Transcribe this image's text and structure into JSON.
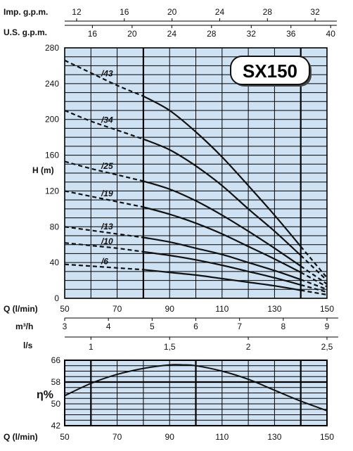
{
  "chart_data": [
    {
      "type": "line",
      "title": "SX150",
      "ylabel": "H (m)",
      "xlabel": "Q (l/min)",
      "xlim": [
        50,
        150
      ],
      "ylim": [
        0,
        280
      ],
      "x_ticks": [
        "50",
        "70",
        "90",
        "110",
        "130",
        "150"
      ],
      "y_ticks": [
        "0",
        "40",
        "80",
        "120",
        "160",
        "200",
        "240",
        "280"
      ],
      "top_axes": [
        {
          "label": "Imp. g.p.m.",
          "ticks": [
            "12",
            "16",
            "20",
            "24",
            "28",
            "32"
          ]
        },
        {
          "label": "U.S. g.p.m.",
          "ticks": [
            "16",
            "20",
            "24",
            "28",
            "32",
            "36",
            "40"
          ]
        }
      ],
      "bottom_axes": [
        {
          "label": "m³/h",
          "ticks": [
            "3",
            "4",
            "5",
            "6",
            "7",
            "8",
            "9"
          ]
        },
        {
          "label": "l/s",
          "ticks": [
            "1",
            "1,5",
            "2",
            "2,5"
          ]
        }
      ],
      "grid": true,
      "recommended_range": [
        80,
        140
      ],
      "series": [
        {
          "name": "/43",
          "x": [
            50,
            60,
            70,
            80,
            90,
            100,
            110,
            120,
            130,
            140,
            150
          ],
          "y": [
            266,
            252,
            238,
            226,
            210,
            186,
            158,
            126,
            93,
            58,
            23
          ]
        },
        {
          "name": "/34",
          "x": [
            50,
            60,
            70,
            80,
            90,
            100,
            110,
            120,
            130,
            140,
            150
          ],
          "y": [
            210,
            198,
            188,
            178,
            166,
            148,
            126,
            100,
            75,
            48,
            20
          ]
        },
        {
          "name": "/25",
          "x": [
            50,
            60,
            70,
            80,
            90,
            100,
            110,
            120,
            130,
            140,
            150
          ],
          "y": [
            153,
            145,
            138,
            131,
            122,
            109,
            93,
            75,
            56,
            36,
            16
          ]
        },
        {
          "name": "/19",
          "x": [
            50,
            60,
            70,
            80,
            90,
            100,
            110,
            120,
            130,
            140,
            150
          ],
          "y": [
            120,
            114,
            108,
            102,
            94,
            84,
            72,
            58,
            44,
            29,
            13
          ]
        },
        {
          "name": "/13",
          "x": [
            50,
            60,
            70,
            80,
            90,
            100,
            110,
            120,
            130,
            140,
            150
          ],
          "y": [
            80,
            76,
            72,
            68,
            63,
            56,
            49,
            40,
            31,
            21,
            10
          ]
        },
        {
          "name": "/10",
          "x": [
            50,
            60,
            70,
            80,
            90,
            100,
            110,
            120,
            130,
            140,
            150
          ],
          "y": [
            62,
            59,
            56,
            52,
            48,
            43,
            37,
            30,
            23,
            15,
            7
          ]
        },
        {
          "name": "/6",
          "x": [
            50,
            60,
            70,
            80,
            90,
            100,
            110,
            120,
            130,
            140,
            150
          ],
          "y": [
            38,
            36,
            34,
            32,
            29,
            26,
            22,
            18,
            14,
            9,
            4
          ]
        }
      ]
    },
    {
      "type": "line",
      "ylabel": "η%",
      "xlabel": "Q (l/min)",
      "xlim": [
        50,
        150
      ],
      "ylim": [
        42,
        66
      ],
      "x_ticks": [
        "50",
        "70",
        "90",
        "110",
        "130",
        "150"
      ],
      "y_ticks": [
        "42",
        "50",
        "58",
        "66"
      ],
      "grid": true,
      "series": [
        {
          "name": "",
          "x": [
            50,
            60,
            70,
            80,
            90,
            95,
            100,
            110,
            120,
            130,
            140,
            150
          ],
          "y": [
            53,
            57.5,
            60.8,
            63,
            64.3,
            64.3,
            64,
            62,
            59,
            55,
            51,
            47.5
          ]
        }
      ]
    }
  ]
}
